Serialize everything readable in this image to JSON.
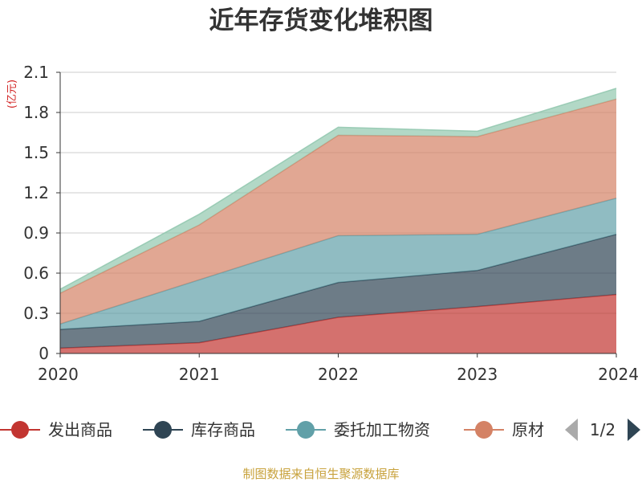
{
  "chart_data": {
    "type": "area",
    "stacked": true,
    "title": "近年存货变化堆积图",
    "unit": "(亿元)",
    "categories": [
      "2020",
      "2021",
      "2022",
      "2023",
      "2024"
    ],
    "ylim": [
      0,
      2.1
    ],
    "yticks": [
      "0",
      "0.3",
      "0.6",
      "0.9",
      "1.2",
      "1.5",
      "1.8",
      "2.1"
    ],
    "grid": true,
    "series": [
      {
        "name": "发出商品",
        "color": "#c23531",
        "values": [
          0.04,
          0.08,
          0.27,
          0.35,
          0.44
        ]
      },
      {
        "name": "库存商品",
        "color": "#2f4554",
        "values": [
          0.14,
          0.16,
          0.26,
          0.27,
          0.45
        ]
      },
      {
        "name": "委托加工物资",
        "color": "#61a0a8",
        "values": [
          0.04,
          0.31,
          0.35,
          0.27,
          0.27
        ]
      },
      {
        "name": "原材料",
        "color": "#d48265",
        "values": [
          0.23,
          0.41,
          0.75,
          0.73,
          0.74
        ]
      },
      {
        "name": "",
        "color": "#91c7ae",
        "values": [
          0.03,
          0.08,
          0.06,
          0.04,
          0.08
        ]
      }
    ],
    "legend": {
      "position": "bottom",
      "visible_items": [
        "发出商品",
        "库存商品",
        "委托加工物资",
        "原材"
      ],
      "page": "1/2"
    },
    "source": "制图数据来自恒生聚源数据库"
  }
}
